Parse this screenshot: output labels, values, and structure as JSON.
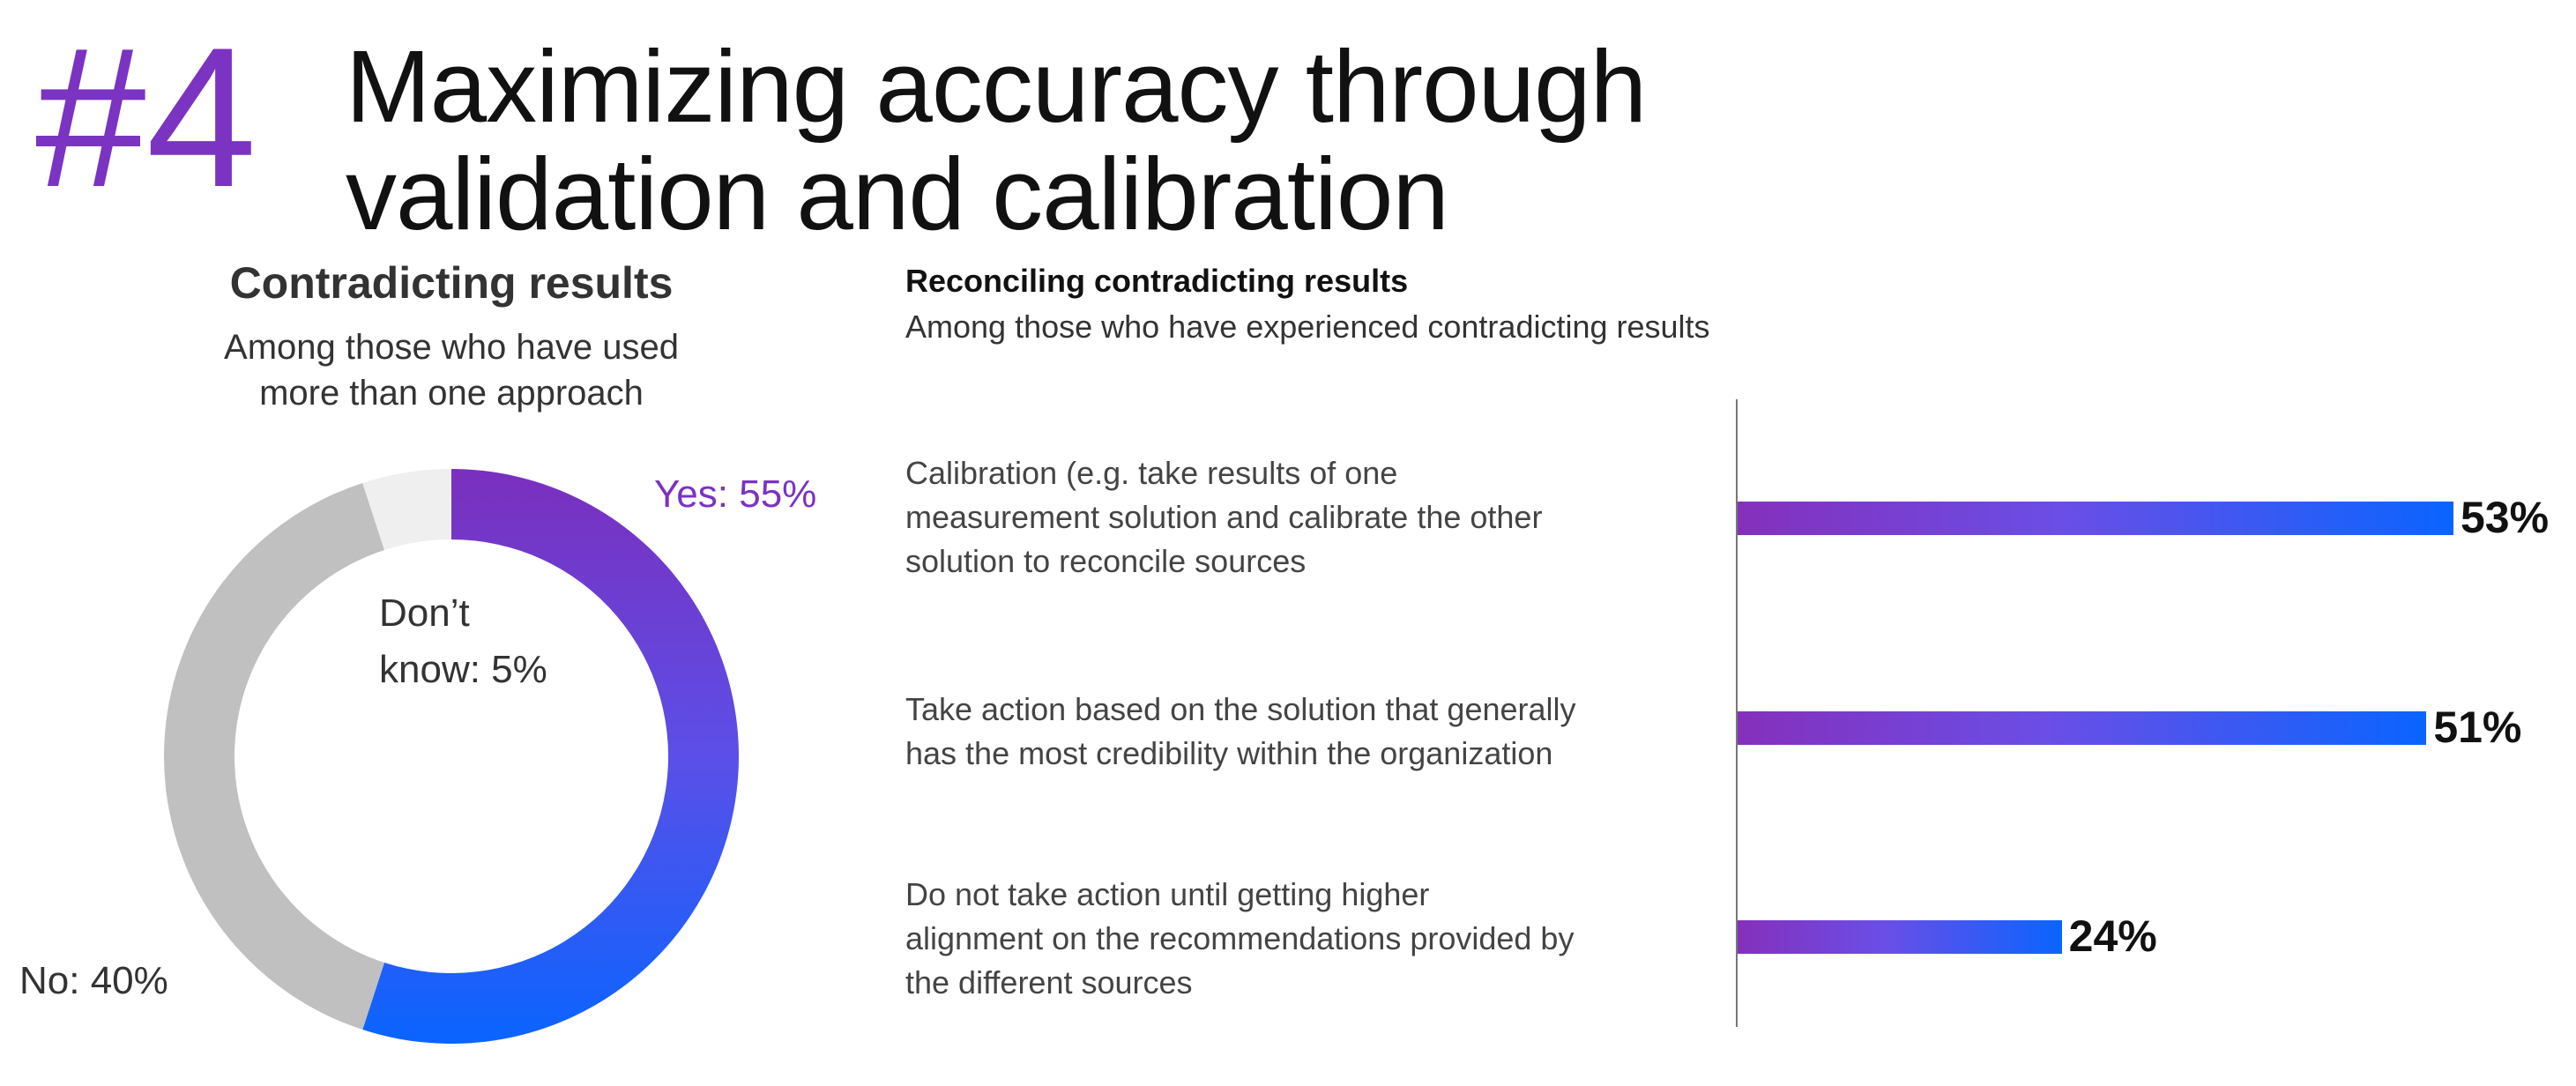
{
  "header": {
    "number": "#4",
    "title_line1": "Maximizing accuracy through",
    "title_line2": "validation and calibration"
  },
  "colors": {
    "purple": "#7B33C2",
    "blue": "#0A64FF",
    "gray": "#C0C0C0",
    "light_gray": "#EFEFEF"
  },
  "chart_data": [
    {
      "type": "pie",
      "subtype": "donut",
      "title": "Contradicting results",
      "subtitle_line1": "Among those who have used",
      "subtitle_line2": "more than one approach",
      "slices": [
        {
          "name": "Yes",
          "value": 55,
          "label": "Yes: 55%",
          "color": "gradient purple-blue"
        },
        {
          "name": "No",
          "value": 40,
          "label": "No: 40%",
          "color": "#C0C0C0"
        },
        {
          "name": "Don't know",
          "value": 5,
          "label_line1": "Don’t",
          "label_line2": "know: 5%",
          "color": "#EFEFEF"
        }
      ]
    },
    {
      "type": "bar",
      "orientation": "horizontal",
      "title": "Reconciling contradicting results",
      "subtitle": "Among those who have experienced contradicting results",
      "xlim": [
        0,
        53
      ],
      "bars": [
        {
          "label_lines": [
            "Calibration (e.g. take results of one",
            "measurement solution and calibrate the other",
            "solution to reconcile sources"
          ],
          "value": 53,
          "value_label": "53%"
        },
        {
          "label_lines": [
            "Take action based on the solution that generally",
            "has the most credibility within the organization"
          ],
          "value": 51,
          "value_label": "51%"
        },
        {
          "label_lines": [
            "Do not take action until getting higher",
            "alignment on the recommendations provided by",
            "the different sources"
          ],
          "value": 24,
          "value_label": "24%"
        }
      ]
    }
  ]
}
